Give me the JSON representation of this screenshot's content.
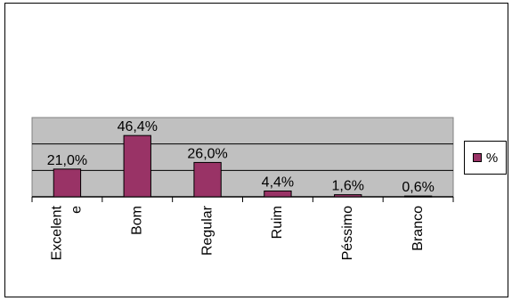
{
  "chart_data": {
    "type": "bar",
    "categories": [
      "Excelent\ne",
      "Bom",
      "Regular",
      "Ruim",
      "Péssimo",
      "Branco"
    ],
    "series": [
      {
        "name": "%",
        "values": [
          21.0,
          46.4,
          26.0,
          4.4,
          1.6,
          0.6
        ],
        "labels": [
          "21,0%",
          "46,4%",
          "26,0%",
          "4,4%",
          "1,6%",
          "0,6%"
        ]
      }
    ],
    "title": "",
    "xlabel": "",
    "ylabel": "",
    "ylim": [
      0,
      60
    ],
    "ygrid_step": 20,
    "grid": true,
    "legend": "right",
    "colors": {
      "bar": "#993366",
      "plot_background": "#c0c0c0",
      "axis": "#000000"
    }
  }
}
